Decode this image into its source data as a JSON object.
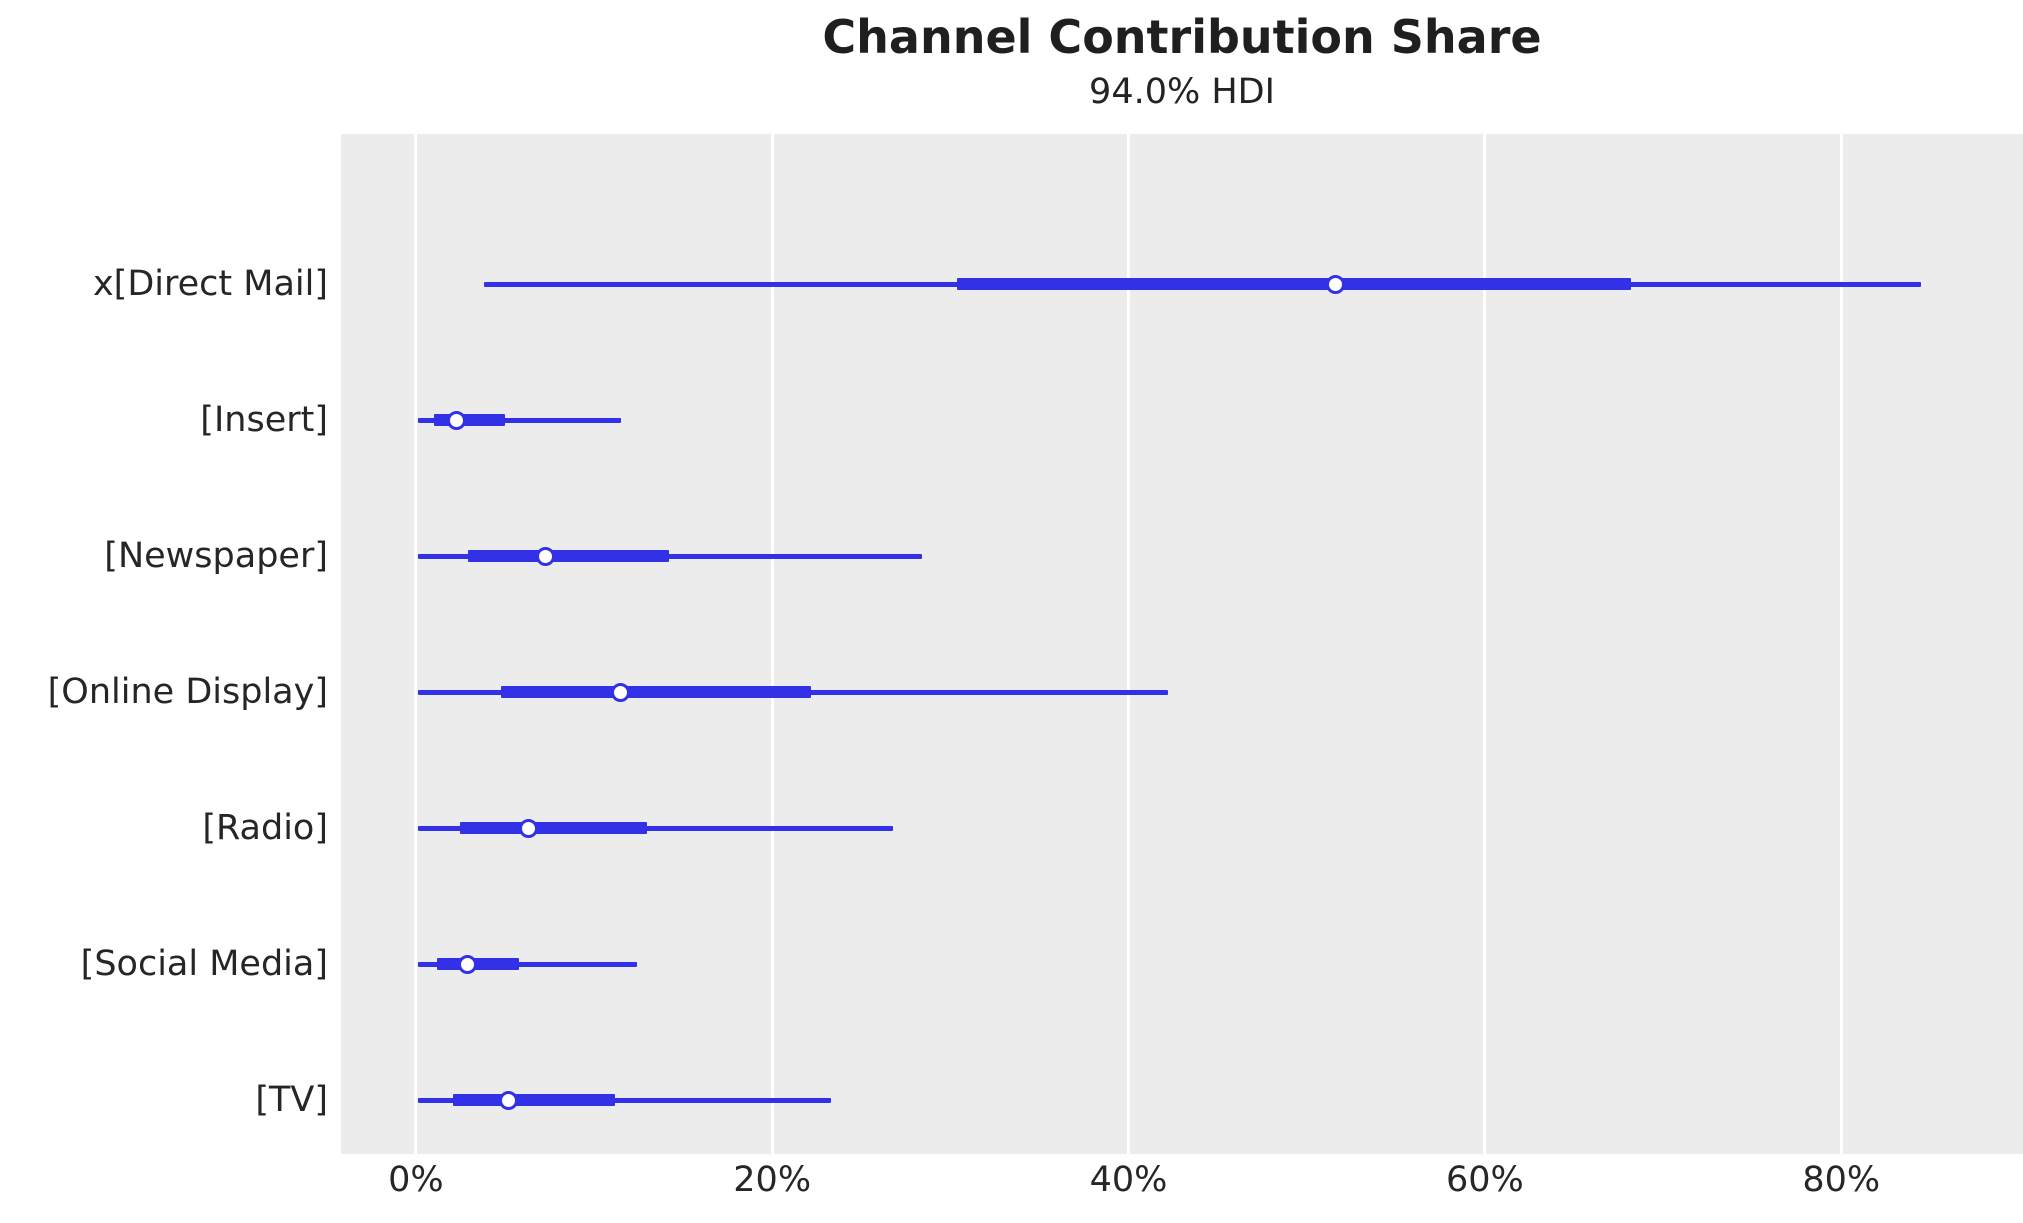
{
  "figure": {
    "title": "Channel Contribution Share",
    "subtitle": "94.0% HDI"
  },
  "chart_data": {
    "type": "forest",
    "title": "Channel Contribution Share",
    "subtitle": "94.0% HDI",
    "hdi_probability_percent": 94.0,
    "x_unit": "contribution share (%)",
    "xlim": [
      -4.2,
      90.2
    ],
    "x_ticks": [
      {
        "value": 0,
        "label": "0%"
      },
      {
        "value": 20,
        "label": "20%"
      },
      {
        "value": 40,
        "label": "40%"
      },
      {
        "value": 60,
        "label": "60%"
      },
      {
        "value": 80,
        "label": "80%"
      }
    ],
    "grid": "vertical white gridlines on light gray panel, no axis spines",
    "legend": "none",
    "colors": {
      "interval": "#3231e8",
      "marker_face": "#ffffff",
      "panel_background": "#ececec",
      "gridline": "#ffffff",
      "text": "#262626"
    },
    "rows": [
      {
        "label": "x[Direct Mail]",
        "hdi_94": [
          3.8,
          84.5
        ],
        "quartile_band": [
          30.4,
          68.2
        ],
        "median": 51.6
      },
      {
        "label": "[Insert]",
        "hdi_94": [
          0.1,
          11.5
        ],
        "quartile_band": [
          1.0,
          5.0
        ],
        "median": 2.3
      },
      {
        "label": "[Newspaper]",
        "hdi_94": [
          0.1,
          28.4
        ],
        "quartile_band": [
          2.9,
          14.2
        ],
        "median": 7.3
      },
      {
        "label": "[Online Display]",
        "hdi_94": [
          0.1,
          42.2
        ],
        "quartile_band": [
          4.8,
          22.2
        ],
        "median": 11.5
      },
      {
        "label": "[Radio]",
        "hdi_94": [
          0.1,
          26.8
        ],
        "quartile_band": [
          2.5,
          13.0
        ],
        "median": 6.3
      },
      {
        "label": "[Social Media]",
        "hdi_94": [
          0.1,
          12.4
        ],
        "quartile_band": [
          1.2,
          5.8
        ],
        "median": 2.9
      },
      {
        "label": "[TV]",
        "hdi_94": [
          0.1,
          23.3
        ],
        "quartile_band": [
          2.1,
          11.2
        ],
        "median": 5.2
      }
    ]
  }
}
